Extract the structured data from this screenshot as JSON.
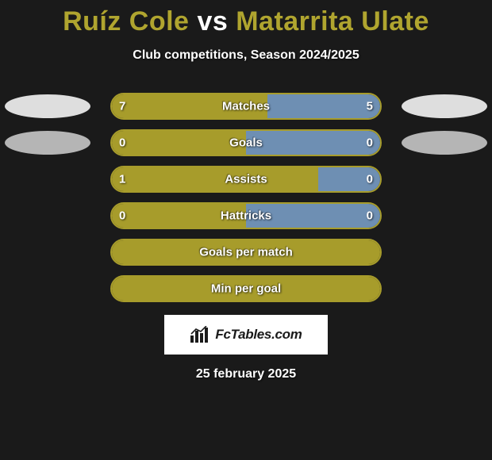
{
  "title": {
    "player1": "Ruíz Cole",
    "vs": "vs",
    "player2": "Matarrita Ulate",
    "color_player": "#b0a52f",
    "color_vs": "#ffffff"
  },
  "subtitle": "Club competitions, Season 2024/2025",
  "colors": {
    "bar_border": "#a79c2b",
    "bar_left": "#a79c2b",
    "bar_right": "#6e8fb3",
    "ellipse_light": "#dedede",
    "ellipse_dark": "#b5b5b5",
    "background": "#1a1a1a"
  },
  "bars": [
    {
      "label": "Matches",
      "left_val": "7",
      "right_val": "5",
      "left_pct": 58,
      "right_pct": 42,
      "show_vals": true,
      "show_ellipses": true,
      "ellipse_shade": "light"
    },
    {
      "label": "Goals",
      "left_val": "0",
      "right_val": "0",
      "left_pct": 50,
      "right_pct": 50,
      "show_vals": true,
      "show_ellipses": true,
      "ellipse_shade": "dark"
    },
    {
      "label": "Assists",
      "left_val": "1",
      "right_val": "0",
      "left_pct": 77,
      "right_pct": 23,
      "show_vals": true,
      "show_ellipses": false
    },
    {
      "label": "Hattricks",
      "left_val": "0",
      "right_val": "0",
      "left_pct": 50,
      "right_pct": 50,
      "show_vals": true,
      "show_ellipses": false
    },
    {
      "label": "Goals per match",
      "left_val": "",
      "right_val": "",
      "left_pct": 100,
      "right_pct": 0,
      "show_vals": false,
      "show_ellipses": false
    },
    {
      "label": "Min per goal",
      "left_val": "",
      "right_val": "",
      "left_pct": 100,
      "right_pct": 0,
      "show_vals": false,
      "show_ellipses": false
    }
  ],
  "footer": {
    "brand": "FcTables.com"
  },
  "date": "25 february 2025"
}
